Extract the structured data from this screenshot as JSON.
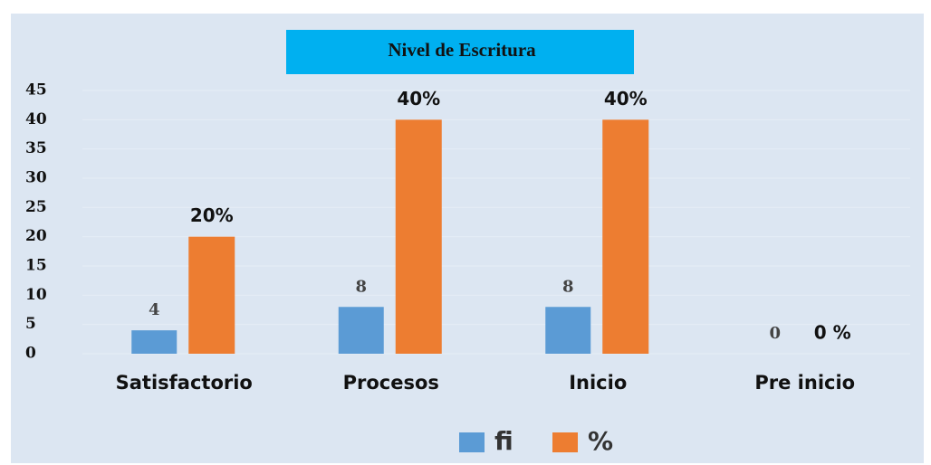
{
  "chart_data": {
    "type": "bar",
    "title": "Nivel de Escritura",
    "categories": [
      "Satisfactorio",
      "Procesos",
      "Inicio",
      "Pre inicio"
    ],
    "series": [
      {
        "name": "fi",
        "color": "#5b9bd5",
        "values": [
          4,
          8,
          8,
          0
        ]
      },
      {
        "name": "%",
        "color": "#ed7d31",
        "values": [
          20,
          40,
          40,
          0
        ],
        "value_labels": [
          "20%",
          "40%",
          "40%",
          "0 %"
        ]
      }
    ],
    "ylim": [
      0,
      45
    ],
    "yticks": [
      0,
      5,
      10,
      15,
      20,
      25,
      30,
      35,
      40,
      45
    ],
    "grid": true,
    "legend": "bottom"
  }
}
